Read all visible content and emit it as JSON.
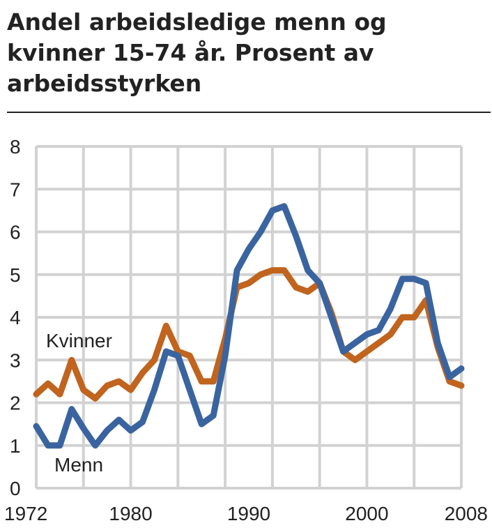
{
  "chart_data": {
    "type": "line",
    "title": "Andel arbeidsledige menn og kvinner 15-74 år. Prosent av arbeidsstyrken",
    "xlabel": "",
    "ylabel": "",
    "xlim": [
      1972,
      2008
    ],
    "ylim": [
      0,
      8
    ],
    "x_tick_labels": [
      "1972",
      "1980",
      "1990",
      "2000",
      "2008"
    ],
    "y_tick_labels": [
      "0",
      "1",
      "2",
      "3",
      "4",
      "5",
      "6",
      "7",
      "8"
    ],
    "grid": true,
    "x": [
      1972,
      1973,
      1974,
      1975,
      1976,
      1977,
      1978,
      1979,
      1980,
      1981,
      1982,
      1983,
      1984,
      1985,
      1986,
      1987,
      1988,
      1989,
      1990,
      1991,
      1992,
      1993,
      1994,
      1995,
      1996,
      1997,
      1998,
      1999,
      2000,
      2001,
      2002,
      2003,
      2004,
      2005,
      2006,
      2007,
      2008
    ],
    "series": [
      {
        "name": "Kvinner",
        "color": "#c0641e",
        "values": [
          2.2,
          2.45,
          2.2,
          3.0,
          2.3,
          2.1,
          2.4,
          2.5,
          2.3,
          2.7,
          3.0,
          3.8,
          3.2,
          3.1,
          2.5,
          2.5,
          3.5,
          4.7,
          4.8,
          5.0,
          5.1,
          5.1,
          4.7,
          4.6,
          4.8,
          4.1,
          3.2,
          3.0,
          3.2,
          3.4,
          3.6,
          4.0,
          4.0,
          4.4,
          3.3,
          2.5,
          2.4
        ]
      },
      {
        "name": "Menn",
        "color": "#3a64a0",
        "values": [
          1.45,
          1.0,
          1.0,
          1.85,
          1.4,
          1.0,
          1.35,
          1.6,
          1.35,
          1.55,
          2.3,
          3.2,
          3.1,
          2.3,
          1.5,
          1.7,
          3.1,
          5.1,
          5.6,
          6.0,
          6.5,
          6.6,
          5.9,
          5.1,
          4.8,
          4.0,
          3.2,
          3.4,
          3.6,
          3.7,
          4.2,
          4.9,
          4.9,
          4.8,
          3.4,
          2.6,
          2.8
        ]
      }
    ]
  }
}
